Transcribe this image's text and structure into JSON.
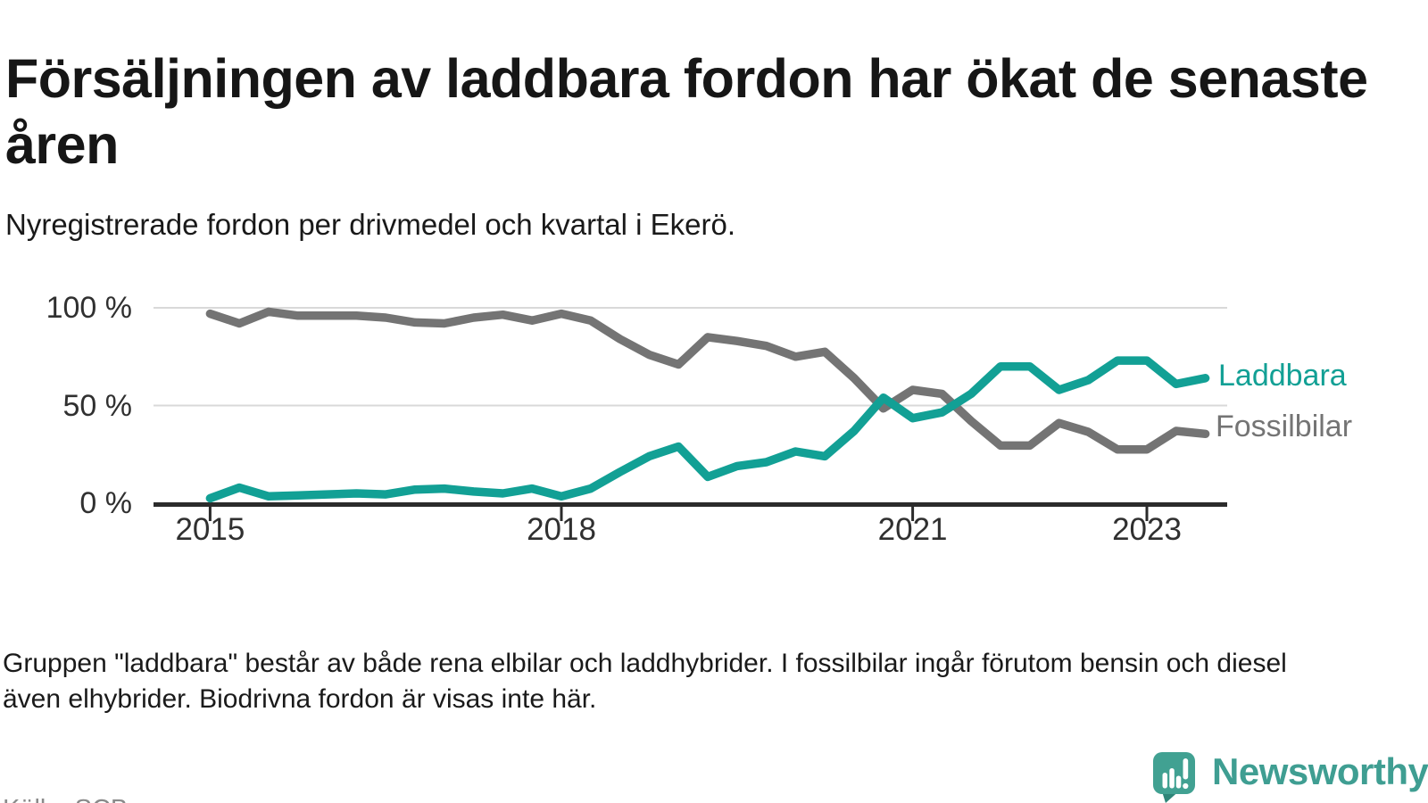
{
  "chart_data": {
    "type": "line",
    "title": "Försäljningen av laddbara fordon har ökat de senaste åren",
    "subtitle": "Nyregistrerade fordon per drivmedel och kvartal i Ekerö.",
    "note": "Gruppen \"laddbara\" består av både rena elbilar och laddhybrider. I fossilbilar ingår förutom bensin och diesel även elhybrider. Biodrivna fordon är visas inte här.",
    "source": "Källa: SCB",
    "x_start_year": 2015,
    "x_step_years": 0.25,
    "x_ticks": [
      {
        "label": "2015",
        "value": 2015
      },
      {
        "label": "2018",
        "value": 2018
      },
      {
        "label": "2021",
        "value": 2021
      },
      {
        "label": "2023",
        "value": 2023
      }
    ],
    "y_ticks": [
      {
        "label": "0 %",
        "value": 0
      },
      {
        "label": "50 %",
        "value": 50
      },
      {
        "label": "100 %",
        "value": 100
      }
    ],
    "ylim": [
      0,
      100
    ],
    "grid": "horizontal",
    "legend_position": "right-end-of-lines",
    "series": [
      {
        "name": "Fossilbilar",
        "color": "#747474",
        "values": [
          97,
          92,
          98,
          96,
          96,
          96,
          95,
          92.5,
          92,
          95,
          96.5,
          93.5,
          97,
          93.5,
          84,
          76,
          71,
          85,
          83,
          80.5,
          75,
          77.5,
          64,
          48.5,
          58,
          56,
          42,
          29.5,
          29.5,
          41,
          36.5,
          27.5,
          27.5,
          37,
          35.5
        ]
      },
      {
        "name": "Laddbara",
        "color": "#12a095",
        "values": [
          2.5,
          8,
          3.5,
          4,
          4.5,
          5,
          4.5,
          7,
          7.5,
          6,
          5,
          7.5,
          3.5,
          7.5,
          16,
          24,
          29,
          13.5,
          19,
          21,
          26.5,
          24,
          37,
          54,
          43.5,
          46.5,
          56,
          70,
          70,
          58,
          63,
          73,
          73,
          61,
          64
        ]
      }
    ]
  },
  "branding": {
    "logo_text": "Newsworthy",
    "logo_color": "#3f9e92"
  },
  "colors": {
    "accent_teal": "#12a095",
    "line_gray": "#747474",
    "axis": "#2b2b2b",
    "grid": "#d9d9d9",
    "text": "#1a1a1a",
    "muted": "#8a8a8a"
  }
}
